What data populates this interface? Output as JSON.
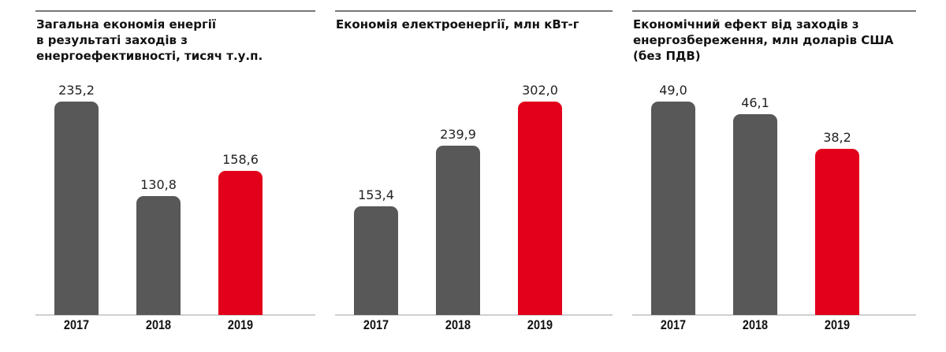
{
  "colors": {
    "gray": "#585858",
    "red": "#e2001a"
  },
  "chart_data": [
    {
      "type": "bar",
      "title": "Загальна економія енергії в результаті заходів з енергоефективності, тисяч т.у.п.",
      "title_lines": [
        "Загальна економія енергії",
        "в результаті заходів з",
        "енергоефективності, тисяч т.у.п."
      ],
      "categories": [
        "2017",
        "2018",
        "2019"
      ],
      "values": [
        235.2,
        130.8,
        158.6
      ],
      "labels": [
        "235,2",
        "130,8",
        "158,6"
      ],
      "highlight": [
        false,
        false,
        true
      ]
    },
    {
      "type": "bar",
      "title": "Економія електроенергії, млн кВт-г",
      "title_lines": [
        "Економія електроенергії, млн кВт-г"
      ],
      "categories": [
        "2017",
        "2018",
        "2019"
      ],
      "values": [
        153.4,
        239.9,
        302.0
      ],
      "labels": [
        "153,4",
        "239,9",
        "302,0"
      ],
      "highlight": [
        false,
        false,
        true
      ]
    },
    {
      "type": "bar",
      "title": "Економічний ефект від заходів з енергозбереження, млн доларів США (без ПДВ)",
      "title_lines": [
        "Економічний ефект від заходів з",
        "енергозбереження, млн доларів США",
        "(без ПДВ)"
      ],
      "categories": [
        "2017",
        "2018",
        "2019"
      ],
      "values": [
        49.0,
        46.1,
        38.2
      ],
      "labels": [
        "49,0",
        "46,1",
        "38,2"
      ],
      "highlight": [
        false,
        false,
        true
      ]
    }
  ]
}
